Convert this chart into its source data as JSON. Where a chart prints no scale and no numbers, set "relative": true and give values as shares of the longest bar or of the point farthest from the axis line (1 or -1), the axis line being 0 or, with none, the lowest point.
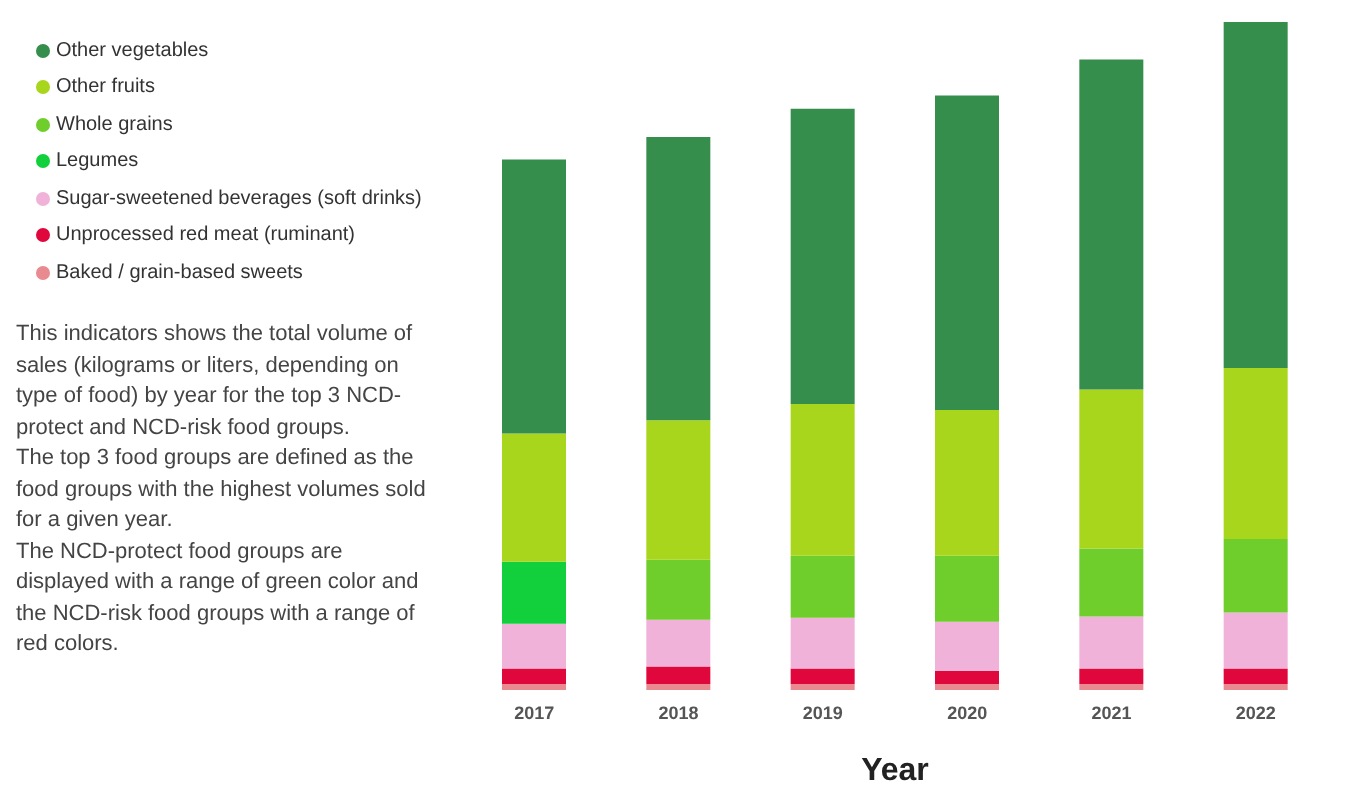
{
  "chart_data": {
    "type": "bar",
    "stacked": true,
    "relative": true,
    "xlabel": "Year",
    "categories": [
      "2017",
      "2018",
      "2019",
      "2020",
      "2021",
      "2022"
    ],
    "series": [
      {
        "name": "Baked / grain-based sweets",
        "color": "#e88a8f",
        "values": [
          0.009,
          0.009,
          0.009,
          0.009,
          0.009,
          0.009
        ]
      },
      {
        "name": "Unprocessed red meat (ruminant)",
        "color": "#e0073d",
        "values": [
          0.023,
          0.026,
          0.023,
          0.02,
          0.023,
          0.023
        ]
      },
      {
        "name": "Sugar-sweetened beverages (soft drinks)",
        "color": "#f0b2d9",
        "values": [
          0.067,
          0.07,
          0.076,
          0.073,
          0.078,
          0.084
        ]
      },
      {
        "name": "Legumes",
        "color": "#12d03c",
        "values": [
          0.093,
          null,
          null,
          null,
          null,
          null
        ]
      },
      {
        "name": "Whole grains",
        "color": "#6fcd2c",
        "values": [
          null,
          0.09,
          0.093,
          0.099,
          0.102,
          0.11
        ]
      },
      {
        "name": "Other fruits",
        "color": "#a8d61c",
        "values": [
          0.192,
          0.209,
          0.227,
          0.218,
          0.238,
          0.256
        ]
      },
      {
        "name": "Other vegetables",
        "color": "#358e4c",
        "values": [
          0.41,
          0.424,
          0.442,
          0.471,
          0.494,
          0.518
        ]
      }
    ],
    "legend": "top left",
    "grid": false,
    "annotations": [
      "This indicators shows the total volume of sales (kilograms or liters, depending on type of food) by year for the top 3 NCD-protect and NCD-risk food groups.\nThe top 3 food groups are defined as the food groups with the highest volumes sold for a given year.\nThe NCD-protect food groups are displayed with a range of green color and the NCD-risk food groups with a range of red colors."
    ]
  }
}
